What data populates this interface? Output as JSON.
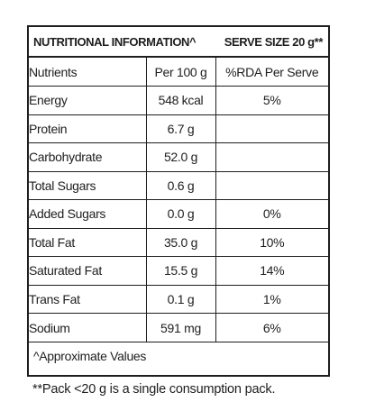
{
  "header": {
    "title": "NUTRITIONAL INFORMATION^",
    "serve_size": "SERVE SIZE 20 g**"
  },
  "columns": {
    "nutrients": "Nutrients",
    "per100": "Per 100 g",
    "rda": "%RDA Per Serve"
  },
  "rows": [
    {
      "name": "Energy",
      "per100": "548 kcal",
      "rda": "5%"
    },
    {
      "name": "Protein",
      "per100": "6.7 g",
      "rda": ""
    },
    {
      "name": "Carbohydrate",
      "per100": "52.0 g",
      "rda": ""
    },
    {
      "name": "Total Sugars",
      "per100": "0.6 g",
      "rda": ""
    },
    {
      "name": "Added Sugars",
      "per100": "0.0 g",
      "rda": "0%"
    },
    {
      "name": "Total Fat",
      "per100": "35.0 g",
      "rda": "10%"
    },
    {
      "name": "Saturated Fat",
      "per100": "15.5 g",
      "rda": "14%"
    },
    {
      "name": "Trans Fat",
      "per100": "0.1 g",
      "rda": "1%"
    },
    {
      "name": "Sodium",
      "per100": "591 mg",
      "rda": "6%"
    }
  ],
  "approx_note": "^Approximate Values",
  "footnote": "**Pack <20 g is a single consumption pack."
}
